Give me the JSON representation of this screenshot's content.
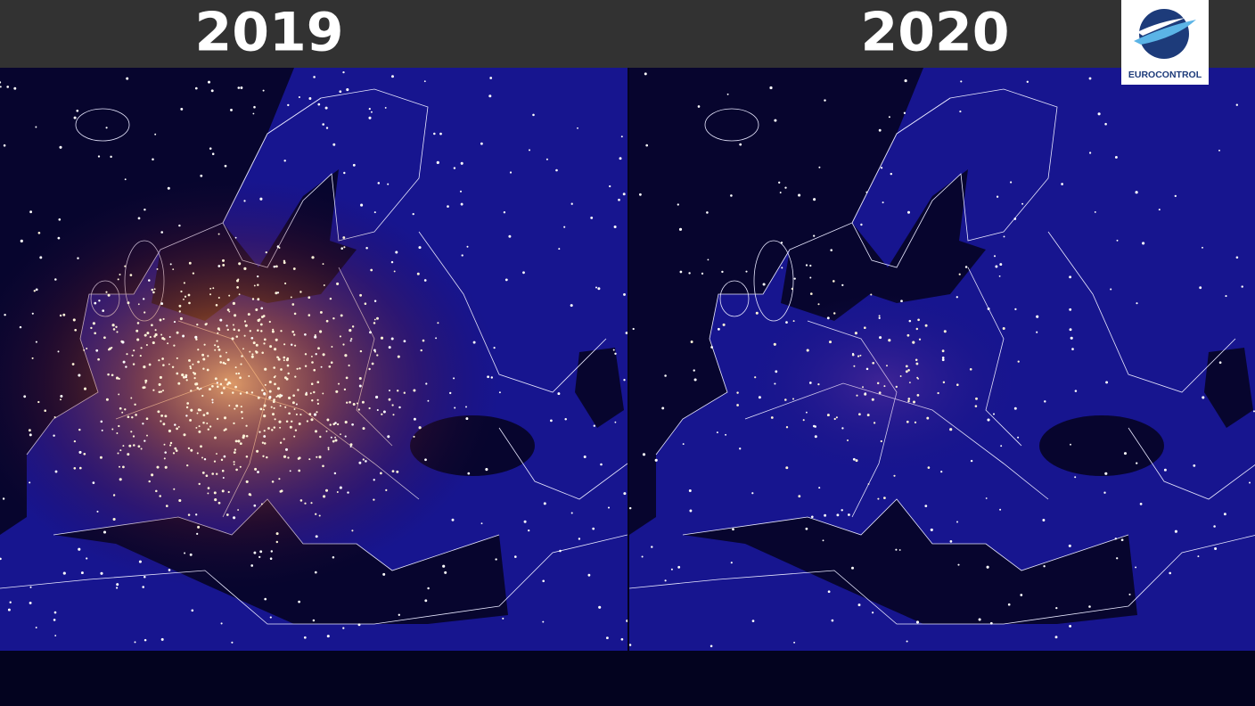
{
  "header": {
    "left_year": "2019",
    "right_year": "2020"
  },
  "logo": {
    "text": "EUROCONTROL"
  }
}
